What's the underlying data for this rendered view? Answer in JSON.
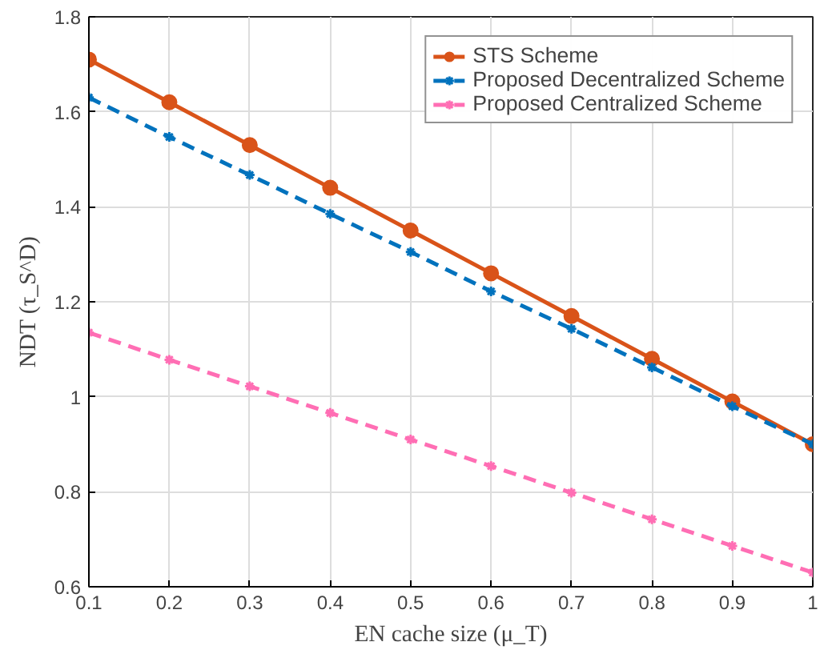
{
  "chart_data": {
    "type": "line",
    "xlabel": "EN cache size (μ_T)",
    "ylabel": "NDT (τ_S^D)",
    "x": [
      0.1,
      0.2,
      0.3,
      0.4,
      0.5,
      0.6,
      0.7,
      0.8,
      0.9,
      1.0
    ],
    "xlim": [
      0.1,
      1.0
    ],
    "xticks": [
      0.1,
      0.2,
      0.3,
      0.4,
      0.5,
      0.6,
      0.7,
      0.8,
      0.9,
      1
    ],
    "ylim": [
      0.6,
      1.8
    ],
    "yticks": [
      0.6,
      0.8,
      1,
      1.2,
      1.4,
      1.6,
      1.8
    ],
    "grid": true,
    "legend": "top right",
    "series": [
      {
        "name": "STS Scheme",
        "color": "#d95319",
        "marker": "circle",
        "line_style": "solid",
        "values": [
          1.71,
          1.62,
          1.53,
          1.44,
          1.35,
          1.26,
          1.17,
          1.08,
          0.99,
          0.9
        ]
      },
      {
        "name": "Proposed Decentralized Scheme",
        "color": "#0072bd",
        "marker": "cross",
        "line_style": "dashed",
        "values": [
          1.63,
          1.547,
          1.467,
          1.385,
          1.305,
          1.222,
          1.143,
          1.062,
          0.98,
          0.9
        ]
      },
      {
        "name": "Proposed Centralized Scheme",
        "color": "#ff6eb4",
        "marker": "cross",
        "line_style": "dashed",
        "values": [
          1.135,
          1.078,
          1.022,
          0.966,
          0.91,
          0.854,
          0.798,
          0.742,
          0.686,
          0.63
        ]
      }
    ]
  }
}
